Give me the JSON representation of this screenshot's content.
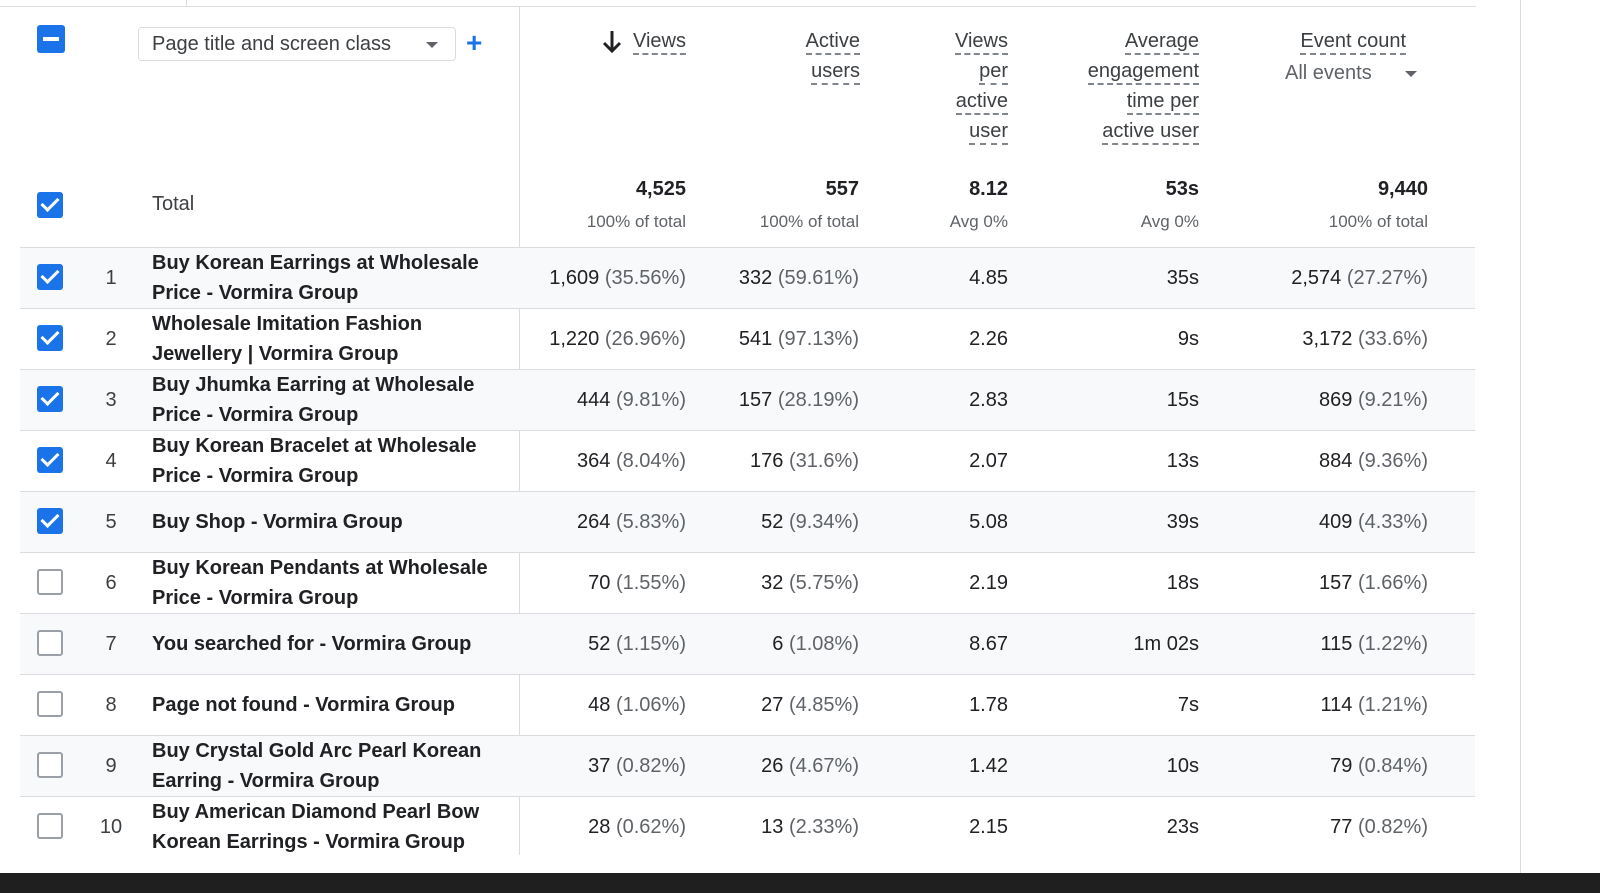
{
  "header": {
    "dimension_select": "Page title and screen class",
    "metrics": {
      "views": [
        "Views"
      ],
      "active_users": [
        "Active",
        "users"
      ],
      "views_per_user": [
        "Views",
        "per",
        "active",
        "user"
      ],
      "engagement": [
        "Average",
        "engagement",
        "time per",
        "active user"
      ],
      "event_count": [
        "Event count"
      ]
    },
    "event_selector": "All events"
  },
  "total": {
    "label": "Total",
    "views": "4,525",
    "views_sub": "100% of total",
    "users": "557",
    "users_sub": "100% of total",
    "vpu": "8.12",
    "vpu_sub": "Avg 0%",
    "eng": "53s",
    "eng_sub": "Avg 0%",
    "events": "9,440",
    "events_sub": "100% of total"
  },
  "rows": [
    {
      "num": "1",
      "title": "Buy Korean Earrings at Wholesale Price - Vormira Group",
      "views": "1,609",
      "views_pct": "(35.56%)",
      "users": "332",
      "users_pct": "(59.61%)",
      "vpu": "4.85",
      "eng": "35s",
      "events": "2,574",
      "events_pct": "(27.27%)",
      "checked": true
    },
    {
      "num": "2",
      "title": "Wholesale Imitation Fashion Jewellery | Vormira Group",
      "views": "1,220",
      "views_pct": "(26.96%)",
      "users": "541",
      "users_pct": "(97.13%)",
      "vpu": "2.26",
      "eng": "9s",
      "events": "3,172",
      "events_pct": "(33.6%)",
      "checked": true
    },
    {
      "num": "3",
      "title": "Buy Jhumka Earring at Wholesale Price - Vormira Group",
      "views": "444",
      "views_pct": "(9.81%)",
      "users": "157",
      "users_pct": "(28.19%)",
      "vpu": "2.83",
      "eng": "15s",
      "events": "869",
      "events_pct": "(9.21%)",
      "checked": true
    },
    {
      "num": "4",
      "title": "Buy Korean Bracelet at Wholesale Price - Vormira Group",
      "views": "364",
      "views_pct": "(8.04%)",
      "users": "176",
      "users_pct": "(31.6%)",
      "vpu": "2.07",
      "eng": "13s",
      "events": "884",
      "events_pct": "(9.36%)",
      "checked": true
    },
    {
      "num": "5",
      "title": "Buy Shop - Vormira Group",
      "views": "264",
      "views_pct": "(5.83%)",
      "users": "52",
      "users_pct": "(9.34%)",
      "vpu": "5.08",
      "eng": "39s",
      "events": "409",
      "events_pct": "(4.33%)",
      "checked": true
    },
    {
      "num": "6",
      "title": "Buy Korean Pendants at Wholesale Price - Vormira Group",
      "views": "70",
      "views_pct": "(1.55%)",
      "users": "32",
      "users_pct": "(5.75%)",
      "vpu": "2.19",
      "eng": "18s",
      "events": "157",
      "events_pct": "(1.66%)",
      "checked": false
    },
    {
      "num": "7",
      "title": "You searched for - Vormira Group",
      "views": "52",
      "views_pct": "(1.15%)",
      "users": "6",
      "users_pct": "(1.08%)",
      "vpu": "8.67",
      "eng": "1m 02s",
      "events": "115",
      "events_pct": "(1.22%)",
      "checked": false
    },
    {
      "num": "8",
      "title": "Page not found - Vormira Group",
      "views": "48",
      "views_pct": "(1.06%)",
      "users": "27",
      "users_pct": "(4.85%)",
      "vpu": "1.78",
      "eng": "7s",
      "events": "114",
      "events_pct": "(1.21%)",
      "checked": false
    },
    {
      "num": "9",
      "title": "Buy Crystal Gold Arc Pearl Korean Earring - Vormira Group",
      "views": "37",
      "views_pct": "(0.82%)",
      "users": "26",
      "users_pct": "(4.67%)",
      "vpu": "1.42",
      "eng": "10s",
      "events": "79",
      "events_pct": "(0.84%)",
      "checked": false
    },
    {
      "num": "10",
      "title": "Buy American Diamond Pearl Bow Korean Earrings - Vormira Group",
      "views": "28",
      "views_pct": "(0.62%)",
      "users": "13",
      "users_pct": "(2.33%)",
      "vpu": "2.15",
      "eng": "23s",
      "events": "77",
      "events_pct": "(0.82%)",
      "checked": false
    }
  ]
}
